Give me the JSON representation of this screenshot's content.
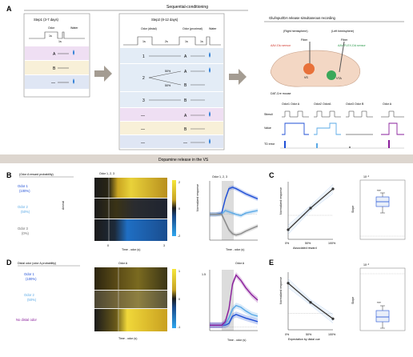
{
  "panels": {
    "A": {
      "label": "A",
      "title": "Sequential-conditioning",
      "step1": {
        "title": "Step1 (3-7 days)",
        "odor": "Odor",
        "water": "Water",
        "dur1": "1s",
        "dur2": "1s",
        "rows": [
          "A",
          "B",
          "—"
        ]
      },
      "step2": {
        "title": "Step2 (8-12 days)",
        "odor_distal": "Odor (distal)",
        "odor_proximal": "Odor (proximal)",
        "water": "Water",
        "dur1": "1s",
        "dur2": "2s",
        "dur3": "1s",
        "dur4": "1s",
        "row_nums": [
          "1",
          "2",
          "3",
          "—",
          "—",
          "—"
        ],
        "prox": [
          "A",
          "A",
          "B",
          "A",
          "B",
          "—"
        ],
        "p50a": "50%",
        "p50b": "50%"
      },
      "recording": {
        "title": "Glu/input/DA release simultaneous recording",
        "right_hemi": "(Right hemisphere)",
        "left_hemi": "(Left hemisphere)",
        "fiber1": "Fiber",
        "fiber2": "Fiber",
        "aav1": "AAV-Glu sensor",
        "aav2": "AAV-FLEX-DA sensor",
        "vs": "VS",
        "vta": "VTA",
        "mouse": "DAT-Cre mouse",
        "conds": [
          "Odor1  Odor A",
          "Odor2  OdorA",
          "Odor3  Odor B",
          "Odor A"
        ],
        "rows": [
          "Stimuli",
          "Value",
          "TD error"
        ]
      }
    },
    "banner": "Dopamine release in the VS",
    "B": {
      "label": "B",
      "subtitle": "(Odor A reward probability)",
      "odor_tag": "Odor 1, 2, 3",
      "groups": [
        {
          "name": "Odor 1",
          "prob": "(100%)"
        },
        {
          "name": "Odor 2",
          "prob": "(50%)"
        },
        {
          "name": "Odor 3",
          "prob": "(0%)"
        }
      ],
      "animal": "Animal",
      "xlabel": "Time - odor (s)",
      "x_ticks": [
        "0",
        "3"
      ],
      "cbar_ticks": [
        "2",
        "0",
        "-2"
      ],
      "trace_label": "Odor 1, 2, 3",
      "ylabel": "Normalized response",
      "trace_ticks_x": [
        "0",
        "1",
        "2",
        "3"
      ]
    },
    "C": {
      "label": "C",
      "xlabel": "Associated reward",
      "ylabel": "Normalized response",
      "x_ticks": [
        "0%",
        "50%",
        "100%"
      ],
      "box_ylabel": "Slope",
      "box_scale": "10⁻²",
      "stars": "***"
    },
    "D": {
      "label": "D",
      "subtitle": "Distal odor (odor A probability)",
      "odor_tag": "Odor A",
      "groups": [
        {
          "name": "Odor 1",
          "prob": "(100%)"
        },
        {
          "name": "Odor 2",
          "prob": "(50%)"
        },
        {
          "name": "No distal odor",
          "prob": ""
        }
      ],
      "xlabel": "Time - odor (s)",
      "cbar_ticks": [
        "1",
        "0",
        "-1"
      ],
      "trace_label": "Odor A",
      "trace_ytick": "1.5",
      "trace_ticks_x": [
        "0",
        "1",
        "2",
        "3"
      ]
    },
    "E": {
      "label": "E",
      "xlabel": "Expectation by distal cue",
      "ylabel": "Normalized response",
      "x_ticks": [
        "0%",
        "50%",
        "100%"
      ],
      "box_ylabel": "Slope",
      "box_scale": "10⁻²",
      "stars": "***"
    }
  },
  "colors": {
    "dark_blue": "#1f4fd6",
    "light_blue": "#5aa9e6",
    "gray": "#8a8a8a",
    "purple": "#8a1f9c",
    "pink_row": "#efdff3",
    "cream_row": "#f8f0d8",
    "blue_row": "#dfe6f4",
    "box_shade": "#e9eff9",
    "banner_bg": "#ddd6cf"
  },
  "chart_data": [
    {
      "panel": "B-trace",
      "type": "line",
      "x": [
        -1,
        -0.5,
        0,
        0.3,
        0.6,
        0.9,
        1.2,
        1.6,
        2.0,
        2.5,
        3.0
      ],
      "xlim": [
        -1,
        3
      ],
      "series": [
        {
          "name": "Odor 1",
          "values": [
            0,
            0,
            0.05,
            0.6,
            1.0,
            1.05,
            1.0,
            0.9,
            0.8,
            0.7,
            0.6
          ]
        },
        {
          "name": "Odor 2",
          "values": [
            0,
            0,
            0.02,
            0.15,
            0.1,
            0.05,
            0.0,
            -0.05,
            0.05,
            0.1,
            0.15
          ]
        },
        {
          "name": "Odor 3",
          "values": [
            0,
            0,
            0,
            -0.3,
            -0.6,
            -0.75,
            -0.8,
            -0.75,
            -0.65,
            -0.55,
            -0.45
          ]
        }
      ]
    },
    {
      "panel": "D-trace",
      "type": "line",
      "x": [
        -1,
        -0.5,
        0,
        0.3,
        0.6,
        0.9,
        1.2,
        1.6,
        2.0,
        2.5,
        3.0
      ],
      "xlim": [
        -1,
        3
      ],
      "series": [
        {
          "name": "Odor 1",
          "values": [
            0.05,
            0.05,
            0.05,
            0.05,
            0.1,
            0.3,
            0.35,
            0.3,
            0.25,
            0.2,
            0.15
          ]
        },
        {
          "name": "Odor 2",
          "values": [
            0.05,
            0.05,
            0.05,
            0.1,
            0.25,
            0.5,
            0.6,
            0.55,
            0.45,
            0.35,
            0.3
          ]
        },
        {
          "name": "No distal odor",
          "values": [
            0.05,
            0.05,
            0.05,
            0.15,
            0.5,
            1.2,
            1.45,
            1.3,
            1.1,
            0.9,
            0.75
          ]
        }
      ]
    },
    {
      "panel": "C-scatter",
      "type": "line",
      "x": [
        0,
        50,
        100
      ],
      "series": [
        {
          "name": "mean",
          "values": [
            -0.6,
            0.3,
            1.1
          ]
        }
      ]
    },
    {
      "panel": "E-scatter",
      "type": "line",
      "x": [
        0,
        50,
        100
      ],
      "series": [
        {
          "name": "mean",
          "values": [
            1.1,
            0.4,
            -0.2
          ]
        }
      ]
    }
  ]
}
